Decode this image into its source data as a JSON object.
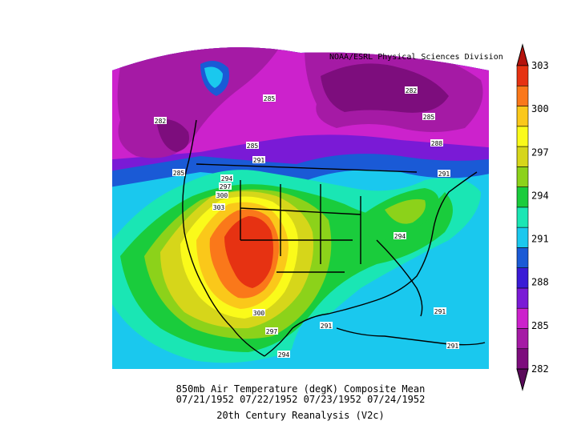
{
  "credit": "NOAA/ESRL Physical Sciences Division",
  "title_lines": [
    "850mb Air Temperature (degK) Composite Mean",
    "07/21/1952 07/22/1952 07/23/1952 07/24/1952",
    "20th Century Reanalysis (V2c)"
  ],
  "colorbar": {
    "tick_labels": [
      "303",
      "300",
      "297",
      "294",
      "291",
      "288",
      "285",
      "282"
    ],
    "levels": [
      {
        "value": "282",
        "color": "#7d0d7d"
      },
      {
        "value": "283.5",
        "color": "#a51aa5"
      },
      {
        "value": "285",
        "color": "#cc22cc"
      },
      {
        "value": "286.5",
        "color": "#7a1ad6"
      },
      {
        "value": "288",
        "color": "#3a1ad6"
      },
      {
        "value": "289.5",
        "color": "#1a5ad6"
      },
      {
        "value": "291",
        "color": "#1ac8ee"
      },
      {
        "value": "292.5",
        "color": "#1ae6b4"
      },
      {
        "value": "294",
        "color": "#1acc3c"
      },
      {
        "value": "295.5",
        "color": "#8cd21a"
      },
      {
        "value": "297",
        "color": "#d6d61a"
      },
      {
        "value": "298.5",
        "color": "#fafa1a"
      },
      {
        "value": "300",
        "color": "#fac81a"
      },
      {
        "value": "301.5",
        "color": "#fa781a"
      },
      {
        "value": "303",
        "color": "#e63212"
      }
    ]
  },
  "contour_labels": [
    "282",
    "285",
    "285",
    "285",
    "288",
    "291",
    "282",
    "285",
    "294",
    "297",
    "300",
    "303",
    "291",
    "294",
    "291",
    "300",
    "297",
    "294",
    "291",
    "291"
  ]
}
